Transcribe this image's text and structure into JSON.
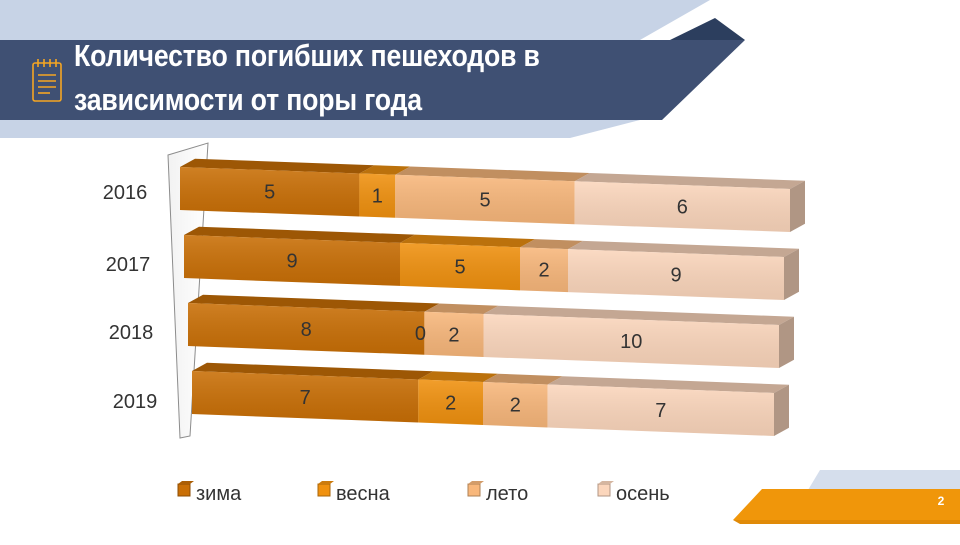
{
  "slide": {
    "title": "Количество погибших пешеходов в зависимости от поры года",
    "page_number": "2"
  },
  "colors": {
    "navy": "#3f5073",
    "light_blue": "#c7d3e6",
    "orange_accent": "#f0960a",
    "icon": "#f5a623"
  },
  "icons": {
    "header": "notepad-icon"
  },
  "chart_data": {
    "type": "bar",
    "orientation": "horizontal",
    "stacked": true,
    "style": "3d",
    "categories": [
      "2016",
      "2017",
      "2018",
      "2019"
    ],
    "series": [
      {
        "name": "зима",
        "values": [
          5,
          9,
          8,
          7
        ],
        "color": "#c96f06"
      },
      {
        "name": "весна",
        "values": [
          1,
          5,
          0,
          2
        ],
        "color": "#f0910f"
      },
      {
        "name": "лето",
        "values": [
          5,
          2,
          2,
          2
        ],
        "color": "#f8b77b"
      },
      {
        "name": "осень",
        "values": [
          6,
          9,
          10,
          7
        ],
        "color": "#fbd6bc"
      }
    ],
    "legend": "bottom",
    "grid": false
  }
}
